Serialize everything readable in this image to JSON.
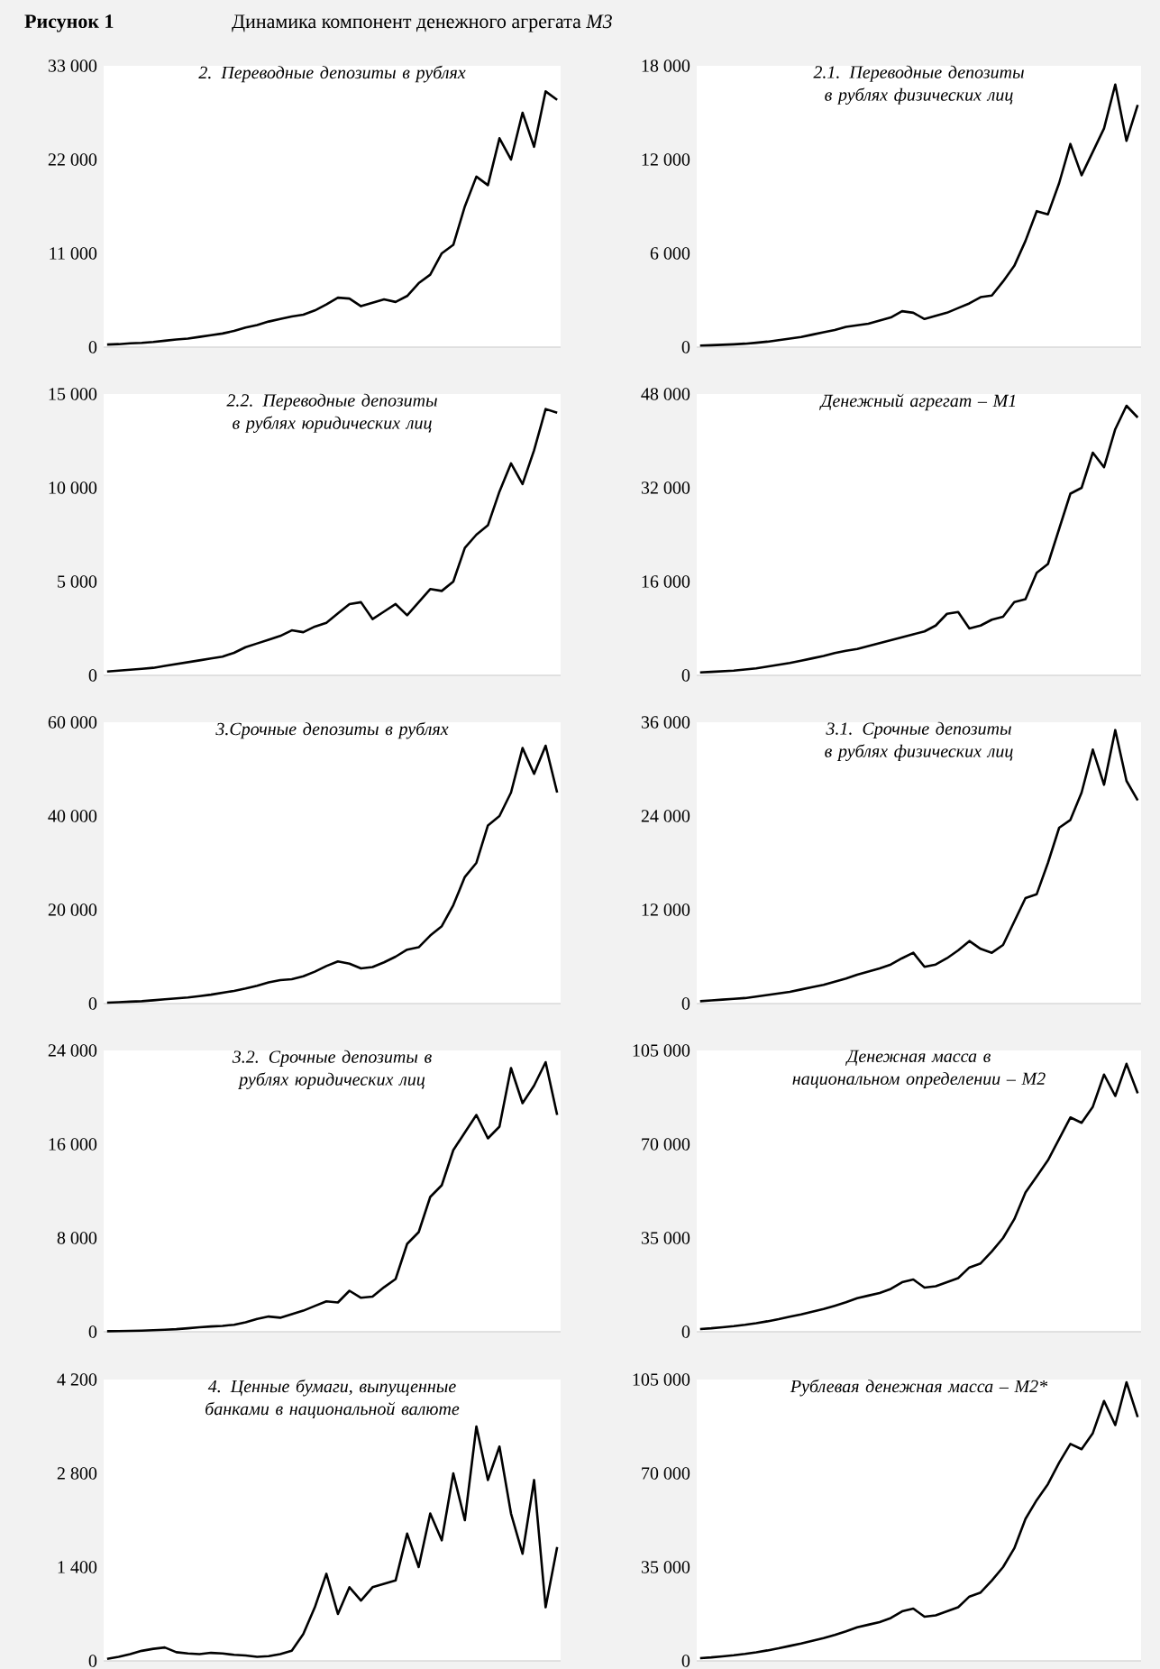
{
  "chart_data": [
    {
      "type": "line",
      "title": "2. Переводные депозиты в рублях",
      "annotations": [
        "Рисунок 1",
        "Динамика компонент денежного агрегата *M3*"
      ],
      "categories": [
        null,
        null,
        null,
        null,
        null,
        null,
        null,
        null,
        null,
        null,
        null,
        null,
        null,
        null,
        null,
        null,
        null,
        null,
        null,
        null,
        null,
        null,
        null,
        null,
        null,
        null,
        null,
        null,
        null,
        null,
        null,
        null,
        null,
        null,
        null,
        null,
        null,
        null,
        null,
        null
      ],
      "ylim": [
        0,
        33000
      ],
      "yticks": [
        0,
        {
          "value": 11000,
          "label": "11 000"
        },
        {
          "value": 22000,
          "label": "22 000"
        },
        {
          "value": 33000,
          "label": "33 000"
        }
      ],
      "tick_labels": "y",
      "series": [
        {
          "color": "#000000",
          "values": [
            300,
            350,
            450,
            500,
            600,
            750,
            900,
            1000,
            1200,
            1400,
            1600,
            1900,
            2300,
            2600,
            3000,
            3300,
            3600,
            3800,
            4300,
            5000,
            5800,
            5700,
            4800,
            5200,
            5600,
            5300,
            6000,
            7500,
            8500,
            11000,
            12000,
            16500,
            20000,
            19000,
            24500,
            22000,
            27500,
            23500,
            30000,
            29000
          ]
        }
      ]
    },
    {
      "type": "line",
      "title": "2.1. Переводные депозиты в рублях физических лиц",
      "categories": [
        null,
        null,
        null,
        null,
        null,
        null,
        null,
        null,
        null,
        null,
        null,
        null,
        null,
        null,
        null,
        null,
        null,
        null,
        null,
        null,
        null,
        null,
        null,
        null,
        null,
        null,
        null,
        null,
        null,
        null,
        null,
        null,
        null,
        null,
        null,
        null,
        null,
        null,
        null,
        null
      ],
      "ylim": [
        0,
        18000
      ],
      "yticks": [
        0,
        {
          "value": 6000,
          "label": "6 000"
        },
        {
          "value": 12000,
          "label": "12 000"
        },
        {
          "value": 18000,
          "label": "18 000"
        }
      ],
      "tick_labels": "y",
      "series": [
        {
          "color": "#000000",
          "values": [
            100,
            120,
            150,
            180,
            220,
            280,
            350,
            450,
            550,
            650,
            800,
            950,
            1100,
            1300,
            1400,
            1500,
            1700,
            1900,
            2300,
            2200,
            1800,
            2000,
            2200,
            2500,
            2800,
            3200,
            3300,
            4200,
            5200,
            6800,
            8700,
            8500,
            10500,
            13000,
            11000,
            12500,
            14000,
            16800,
            13200,
            15500
          ]
        }
      ]
    },
    {
      "type": "line",
      "title": "2.2. Переводные депозиты в рублях юридических лиц",
      "categories": [
        null,
        null,
        null,
        null,
        null,
        null,
        null,
        null,
        null,
        null,
        null,
        null,
        null,
        null,
        null,
        null,
        null,
        null,
        null,
        null,
        null,
        null,
        null,
        null,
        null,
        null,
        null,
        null,
        null,
        null,
        null,
        null,
        null,
        null,
        null,
        null,
        null,
        null,
        null,
        null
      ],
      "ylim": [
        0,
        15000
      ],
      "yticks": [
        0,
        {
          "value": 5000,
          "label": "5 000"
        },
        {
          "value": 10000,
          "label": "10 000"
        },
        {
          "value": 15000,
          "label": "15 000"
        }
      ],
      "tick_labels": "y",
      "series": [
        {
          "color": "#000000",
          "values": [
            200,
            250,
            300,
            350,
            400,
            500,
            600,
            700,
            800,
            900,
            1000,
            1200,
            1500,
            1700,
            1900,
            2100,
            2400,
            2300,
            2600,
            2800,
            3300,
            3800,
            3900,
            3000,
            3400,
            3800,
            3200,
            3900,
            4600,
            4500,
            5000,
            6800,
            7500,
            8000,
            9800,
            11300,
            10200,
            12000,
            14200,
            14000
          ]
        }
      ]
    },
    {
      "type": "line",
      "title": "Денежный агрегат – M1",
      "categories": [
        null,
        null,
        null,
        null,
        null,
        null,
        null,
        null,
        null,
        null,
        null,
        null,
        null,
        null,
        null,
        null,
        null,
        null,
        null,
        null,
        null,
        null,
        null,
        null,
        null,
        null,
        null,
        null,
        null,
        null,
        null,
        null,
        null,
        null,
        null,
        null,
        null,
        null,
        null,
        null
      ],
      "ylim": [
        0,
        48000
      ],
      "yticks": [
        0,
        {
          "value": 16000,
          "label": "16 000"
        },
        {
          "value": 32000,
          "label": "32 000"
        },
        {
          "value": 48000,
          "label": "48 000"
        }
      ],
      "tick_labels": "y",
      "series": [
        {
          "color": "#000000",
          "values": [
            500,
            600,
            700,
            800,
            1000,
            1200,
            1500,
            1800,
            2100,
            2500,
            2900,
            3300,
            3800,
            4200,
            4500,
            5000,
            5500,
            6000,
            6500,
            7000,
            7500,
            8500,
            10500,
            10800,
            8000,
            8500,
            9500,
            10000,
            12500,
            13000,
            17500,
            19000,
            25000,
            31000,
            32000,
            38000,
            35500,
            42000,
            46000,
            44000
          ]
        }
      ]
    },
    {
      "type": "line",
      "title": "3.Срочные депозиты в рублях",
      "categories": [
        null,
        null,
        null,
        null,
        null,
        null,
        null,
        null,
        null,
        null,
        null,
        null,
        null,
        null,
        null,
        null,
        null,
        null,
        null,
        null,
        null,
        null,
        null,
        null,
        null,
        null,
        null,
        null,
        null,
        null,
        null,
        null,
        null,
        null,
        null,
        null,
        null,
        null,
        null,
        null
      ],
      "ylim": [
        0,
        60000
      ],
      "yticks": [
        0,
        {
          "value": 20000,
          "label": "20 000"
        },
        {
          "value": 40000,
          "label": "40 000"
        },
        {
          "value": 60000,
          "label": "60 000"
        }
      ],
      "tick_labels": "y",
      "series": [
        {
          "color": "#000000",
          "values": [
            200,
            300,
            400,
            500,
            700,
            900,
            1100,
            1300,
            1600,
            1900,
            2300,
            2700,
            3200,
            3800,
            4500,
            5000,
            5200,
            5800,
            6800,
            8000,
            9000,
            8500,
            7500,
            7800,
            8800,
            10000,
            11500,
            12000,
            14500,
            16500,
            21000,
            27000,
            30000,
            38000,
            40000,
            45000,
            54500,
            49000,
            55000,
            45000
          ]
        }
      ]
    },
    {
      "type": "line",
      "title": "3.1. Срочные депозиты в рублях физических лиц",
      "categories": [
        null,
        null,
        null,
        null,
        null,
        null,
        null,
        null,
        null,
        null,
        null,
        null,
        null,
        null,
        null,
        null,
        null,
        null,
        null,
        null,
        null,
        null,
        null,
        null,
        null,
        null,
        null,
        null,
        null,
        null,
        null,
        null,
        null,
        null,
        null,
        null,
        null,
        null,
        null,
        null
      ],
      "ylim": [
        0,
        36000
      ],
      "yticks": [
        0,
        {
          "value": 12000,
          "label": "12 000"
        },
        {
          "value": 24000,
          "label": "24 000"
        },
        {
          "value": 36000,
          "label": "36 000"
        }
      ],
      "tick_labels": "y",
      "series": [
        {
          "color": "#000000",
          "values": [
            300,
            400,
            500,
            600,
            700,
            900,
            1100,
            1300,
            1500,
            1800,
            2100,
            2400,
            2800,
            3200,
            3700,
            4100,
            4500,
            5000,
            5800,
            6500,
            4700,
            5000,
            5800,
            6800,
            8000,
            7000,
            6500,
            7500,
            10500,
            13500,
            14000,
            18000,
            22500,
            23500,
            27000,
            32500,
            28000,
            35000,
            28500,
            26000
          ]
        }
      ]
    },
    {
      "type": "line",
      "title": "3.2. Срочные депозиты в рублях юридических лиц",
      "categories": [
        null,
        null,
        null,
        null,
        null,
        null,
        null,
        null,
        null,
        null,
        null,
        null,
        null,
        null,
        null,
        null,
        null,
        null,
        null,
        null,
        null,
        null,
        null,
        null,
        null,
        null,
        null,
        null,
        null,
        null,
        null,
        null,
        null,
        null,
        null,
        null,
        null,
        null,
        null,
        null
      ],
      "ylim": [
        0,
        24000
      ],
      "yticks": [
        0,
        {
          "value": 8000,
          "label": "8 000"
        },
        {
          "value": 16000,
          "label": "16 000"
        },
        {
          "value": 24000,
          "label": "24 000"
        }
      ],
      "tick_labels": "y",
      "series": [
        {
          "color": "#000000",
          "values": [
            50,
            60,
            80,
            100,
            130,
            170,
            220,
            300,
            380,
            450,
            500,
            600,
            800,
            1100,
            1300,
            1200,
            1500,
            1800,
            2200,
            2600,
            2500,
            3500,
            2900,
            3000,
            3800,
            4500,
            7500,
            8500,
            11500,
            12500,
            15500,
            17000,
            18500,
            16500,
            17500,
            22500,
            19500,
            21000,
            23000,
            18500
          ]
        }
      ]
    },
    {
      "type": "line",
      "title": "Денежная масса в национальном определении – M2",
      "categories": [
        null,
        null,
        null,
        null,
        null,
        null,
        null,
        null,
        null,
        null,
        null,
        null,
        null,
        null,
        null,
        null,
        null,
        null,
        null,
        null,
        null,
        null,
        null,
        null,
        null,
        null,
        null,
        null,
        null,
        null,
        null,
        null,
        null,
        null,
        null,
        null,
        null,
        null,
        null,
        null
      ],
      "ylim": [
        0,
        105000
      ],
      "yticks": [
        0,
        {
          "value": 35000,
          "label": "35 000"
        },
        {
          "value": 70000,
          "label": "70 000"
        },
        {
          "value": 105000,
          "label": "105 000"
        }
      ],
      "tick_labels": "y",
      "series": [
        {
          "color": "#000000",
          "values": [
            1000,
            1300,
            1700,
            2100,
            2600,
            3200,
            3900,
            4700,
            5600,
            6500,
            7500,
            8500,
            9700,
            11000,
            12500,
            13500,
            14500,
            16000,
            18500,
            19500,
            16500,
            17000,
            18500,
            20000,
            24000,
            25500,
            30000,
            35000,
            42000,
            52000,
            58000,
            64000,
            72000,
            80000,
            78000,
            84000,
            96000,
            88000,
            100000,
            89000
          ]
        }
      ]
    },
    {
      "type": "line",
      "title": "4. Ценные бумаги, выпущенные банками в национальной валюте",
      "categories": [
        null,
        null,
        null,
        null,
        null,
        null,
        null,
        null,
        null,
        null,
        null,
        null,
        null,
        null,
        null,
        null,
        null,
        null,
        null,
        null,
        null,
        null,
        null,
        null,
        null,
        null,
        null,
        null,
        null,
        null,
        null,
        null,
        null,
        null,
        null,
        null,
        null,
        null,
        null,
        null
      ],
      "ylim": [
        0,
        4200
      ],
      "yticks": [
        0,
        {
          "value": 1400,
          "label": "1 400"
        },
        {
          "value": 2800,
          "label": "2 800"
        },
        {
          "value": 4200,
          "label": "4 200"
        }
      ],
      "tick_labels": "y",
      "series": [
        {
          "color": "#000000",
          "values": [
            30,
            60,
            100,
            150,
            180,
            200,
            130,
            110,
            100,
            120,
            110,
            90,
            80,
            60,
            70,
            100,
            150,
            400,
            800,
            1300,
            700,
            1100,
            900,
            1100,
            1150,
            1200,
            1900,
            1400,
            2200,
            1800,
            2800,
            2100,
            3500,
            2700,
            3200,
            2200,
            1600,
            2700,
            800,
            1700
          ]
        }
      ]
    },
    {
      "type": "line",
      "title": "Рублевая денежная масса – M2*",
      "categories": [
        null,
        null,
        null,
        null,
        null,
        null,
        null,
        null,
        null,
        null,
        null,
        null,
        null,
        null,
        null,
        null,
        null,
        null,
        null,
        null,
        null,
        null,
        null,
        null,
        null,
        null,
        null,
        null,
        null,
        null,
        null,
        null,
        null,
        null,
        null,
        null,
        null,
        null,
        null,
        null
      ],
      "ylim": [
        0,
        105000
      ],
      "yticks": [
        0,
        {
          "value": 35000,
          "label": "35 000"
        },
        {
          "value": 70000,
          "label": "70 000"
        },
        {
          "value": 105000,
          "label": "105 000"
        }
      ],
      "tick_labels": "y",
      "series": [
        {
          "color": "#000000",
          "values": [
            1000,
            1300,
            1700,
            2100,
            2600,
            3200,
            3900,
            4700,
            5600,
            6500,
            7500,
            8500,
            9700,
            11000,
            12500,
            13500,
            14500,
            16000,
            18500,
            19500,
            16500,
            17000,
            18500,
            20000,
            24000,
            25500,
            30000,
            35000,
            42000,
            53000,
            60000,
            66000,
            74000,
            81000,
            79000,
            85000,
            97000,
            88000,
            104000,
            91000
          ]
        }
      ]
    }
  ]
}
